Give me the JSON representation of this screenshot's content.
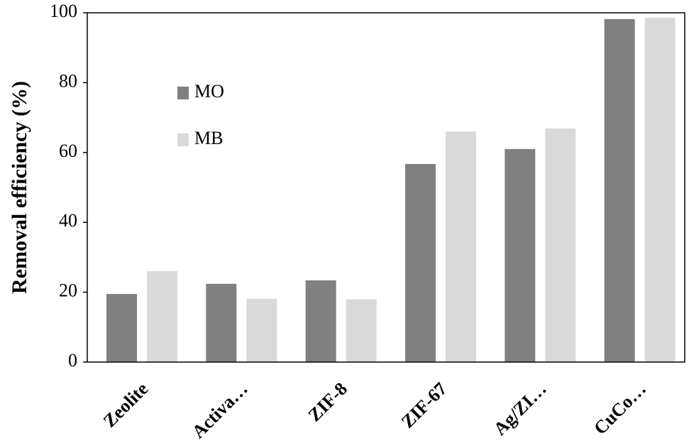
{
  "chart_data": {
    "type": "bar",
    "y_label": "Removal efficiency (%)",
    "categories": [
      "Zeolite",
      "Activa…",
      "ZIF-8",
      "ZIF-67",
      "Ag/ZI…",
      "CuCo…"
    ],
    "series": [
      {
        "name": "MO",
        "color": "#808080",
        "values": [
          19.5,
          22.4,
          23.4,
          56.7,
          61,
          98.2
        ]
      },
      {
        "name": "MB",
        "color": "#d9d9d9",
        "values": [
          26,
          18.1,
          18,
          66,
          66.9,
          98.6
        ]
      }
    ],
    "ylim": [
      0,
      100
    ],
    "yticks": [
      0,
      20,
      40,
      60,
      80,
      100
    ],
    "grid": false
  }
}
